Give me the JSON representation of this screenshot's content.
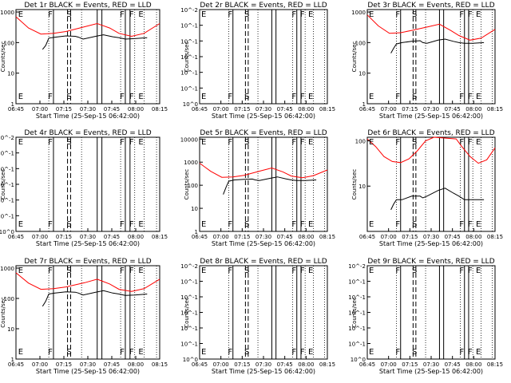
{
  "chart_data": {
    "type": "line",
    "x_tick_labels": [
      "06:45",
      "07:00",
      "07:15",
      "07:30",
      "07:45",
      "08:00",
      "08:15"
    ],
    "x_label": "Start Time (25-Sep-15 06:42:00)",
    "y_label": "Counts/sec",
    "y_scale": "log",
    "series_names": [
      "Events",
      "LLD"
    ],
    "series_colors": {
      "Events": "#000000",
      "LLD": "#ff0000"
    },
    "time_range_min": [
      6.0,
      98.0
    ],
    "event_lines": {
      "solid_min": [
        30,
        58,
        61,
        76,
        79
      ],
      "dashed_min": [
        39,
        41
      ],
      "dotted_min": [
        27,
        48,
        73,
        82,
        88,
        96
      ]
    },
    "markers": [
      {
        "label": "E",
        "min": 9
      },
      {
        "label": "F",
        "min": 28
      },
      {
        "label": "S",
        "min": 40
      },
      {
        "label": "F",
        "min": 74
      },
      {
        "label": "F",
        "min": 80
      },
      {
        "label": "E",
        "min": 86
      }
    ],
    "panels": [
      {
        "title": "Det 1r BLACK = Events, RED = LLD",
        "y_ticks": [
          "1",
          "10",
          "100",
          "1000"
        ],
        "ylim": [
          1,
          1200
        ],
        "lld": [
          [
            6,
            700
          ],
          [
            14,
            300
          ],
          [
            22,
            190
          ],
          [
            30,
            200
          ],
          [
            38,
            230
          ],
          [
            50,
            330
          ],
          [
            58,
            420
          ],
          [
            66,
            300
          ],
          [
            72,
            200
          ],
          [
            80,
            160
          ],
          [
            88,
            200
          ],
          [
            98,
            420
          ]
        ],
        "events": [
          [
            23,
            60
          ],
          [
            25,
            80
          ],
          [
            27,
            140
          ],
          [
            31,
            150
          ],
          [
            38,
            165
          ],
          [
            44,
            160
          ],
          [
            46,
            150
          ],
          [
            49,
            130
          ],
          [
            57,
            160
          ],
          [
            62,
            180
          ],
          [
            68,
            155
          ],
          [
            72,
            145
          ],
          [
            76,
            130
          ],
          [
            82,
            135
          ],
          [
            90,
            145
          ]
        ]
      },
      {
        "title": "Det 2r BLACK = Events, RED = LLD",
        "y_ticks": [
          "10^0",
          "10^-1",
          "10^-1",
          "10^-1",
          "10^-1",
          "10^-1",
          "10^-2"
        ],
        "ylim": null,
        "lld": [],
        "events": []
      },
      {
        "title": "Det 3r BLACK = Events, RED = LLD",
        "y_ticks": [
          "1",
          "10",
          "100",
          "1000"
        ],
        "ylim": [
          1,
          1200
        ],
        "lld": [
          [
            6,
            800
          ],
          [
            14,
            350
          ],
          [
            22,
            200
          ],
          [
            30,
            210
          ],
          [
            38,
            250
          ],
          [
            50,
            330
          ],
          [
            58,
            400
          ],
          [
            66,
            250
          ],
          [
            72,
            170
          ],
          [
            80,
            120
          ],
          [
            88,
            140
          ],
          [
            98,
            270
          ]
        ],
        "events": [
          [
            23,
            45
          ],
          [
            25,
            65
          ],
          [
            27,
            90
          ],
          [
            31,
            100
          ],
          [
            38,
            110
          ],
          [
            44,
            115
          ],
          [
            46,
            100
          ],
          [
            49,
            95
          ],
          [
            57,
            120
          ],
          [
            62,
            130
          ],
          [
            68,
            110
          ],
          [
            72,
            100
          ],
          [
            76,
            95
          ],
          [
            82,
            95
          ],
          [
            90,
            100
          ]
        ]
      },
      {
        "title": "Det 4r BLACK = Events, RED = LLD",
        "y_ticks": [
          "10^0",
          "10^-1",
          "10^-1",
          "10^-1",
          "10^-1",
          "10^-1",
          "10^-2"
        ],
        "ylim": null,
        "lld": [],
        "events": []
      },
      {
        "title": "Det 5r BLACK = Events, RED = LLD",
        "y_ticks": [
          "1",
          "10",
          "100",
          "1000",
          "10000"
        ],
        "ylim": [
          1,
          12000
        ],
        "lld": [
          [
            6,
            900
          ],
          [
            14,
            400
          ],
          [
            22,
            220
          ],
          [
            30,
            230
          ],
          [
            38,
            270
          ],
          [
            50,
            420
          ],
          [
            58,
            560
          ],
          [
            66,
            380
          ],
          [
            72,
            250
          ],
          [
            80,
            210
          ],
          [
            88,
            260
          ],
          [
            98,
            460
          ]
        ],
        "events": [
          [
            23,
            40
          ],
          [
            25,
            80
          ],
          [
            27,
            150
          ],
          [
            31,
            170
          ],
          [
            38,
            180
          ],
          [
            44,
            185
          ],
          [
            46,
            170
          ],
          [
            49,
            160
          ],
          [
            57,
            200
          ],
          [
            62,
            230
          ],
          [
            68,
            190
          ],
          [
            72,
            170
          ],
          [
            76,
            160
          ],
          [
            82,
            160
          ],
          [
            90,
            170
          ]
        ]
      },
      {
        "title": "Det 6r BLACK = Events, RED = LLD",
        "y_ticks": [
          "10",
          "100"
        ],
        "ylim": [
          1,
          120
        ],
        "lld": [
          [
            6,
            110
          ],
          [
            12,
            75
          ],
          [
            18,
            45
          ],
          [
            24,
            35
          ],
          [
            30,
            33
          ],
          [
            36,
            40
          ],
          [
            42,
            60
          ],
          [
            48,
            100
          ],
          [
            54,
            120
          ],
          [
            70,
            110
          ],
          [
            74,
            75
          ],
          [
            80,
            45
          ],
          [
            86,
            32
          ],
          [
            92,
            38
          ],
          [
            98,
            70
          ]
        ],
        "events": [
          [
            23,
            3
          ],
          [
            25,
            4
          ],
          [
            27,
            5
          ],
          [
            31,
            5
          ],
          [
            38,
            6
          ],
          [
            44,
            6
          ],
          [
            46,
            5.5
          ],
          [
            49,
            6
          ],
          [
            57,
            8
          ],
          [
            62,
            9
          ],
          [
            68,
            7
          ],
          [
            72,
            6
          ],
          [
            76,
            5
          ],
          [
            82,
            5
          ],
          [
            90,
            5
          ]
        ]
      },
      {
        "title": "Det 7r BLACK = Events, RED = LLD",
        "y_ticks": [
          "1",
          "10",
          "100",
          "1000"
        ],
        "ylim": [
          1,
          1200
        ],
        "lld": [
          [
            6,
            700
          ],
          [
            14,
            320
          ],
          [
            22,
            200
          ],
          [
            30,
            210
          ],
          [
            38,
            240
          ],
          [
            50,
            330
          ],
          [
            58,
            430
          ],
          [
            66,
            300
          ],
          [
            72,
            200
          ],
          [
            80,
            170
          ],
          [
            88,
            210
          ],
          [
            98,
            430
          ]
        ],
        "events": [
          [
            23,
            55
          ],
          [
            25,
            80
          ],
          [
            27,
            140
          ],
          [
            31,
            150
          ],
          [
            38,
            165
          ],
          [
            44,
            160
          ],
          [
            46,
            150
          ],
          [
            49,
            130
          ],
          [
            57,
            160
          ],
          [
            62,
            180
          ],
          [
            68,
            150
          ],
          [
            72,
            140
          ],
          [
            76,
            125
          ],
          [
            82,
            130
          ],
          [
            90,
            140
          ]
        ]
      },
      {
        "title": "Det 8r BLACK = Events, RED = LLD",
        "y_ticks": [
          "10^0",
          "10^-1",
          "10^-1",
          "10^-1",
          "10^-1",
          "10^-1",
          "10^-2"
        ],
        "ylim": null,
        "lld": [],
        "events": []
      },
      {
        "title": "Det 9r BLACK = Events, RED = LLD",
        "y_ticks": [
          "10^0",
          "10^-1",
          "10^-1",
          "10^-1",
          "10^-1",
          "10^-1",
          "10^-2"
        ],
        "ylim": null,
        "lld": [],
        "events": []
      }
    ]
  }
}
